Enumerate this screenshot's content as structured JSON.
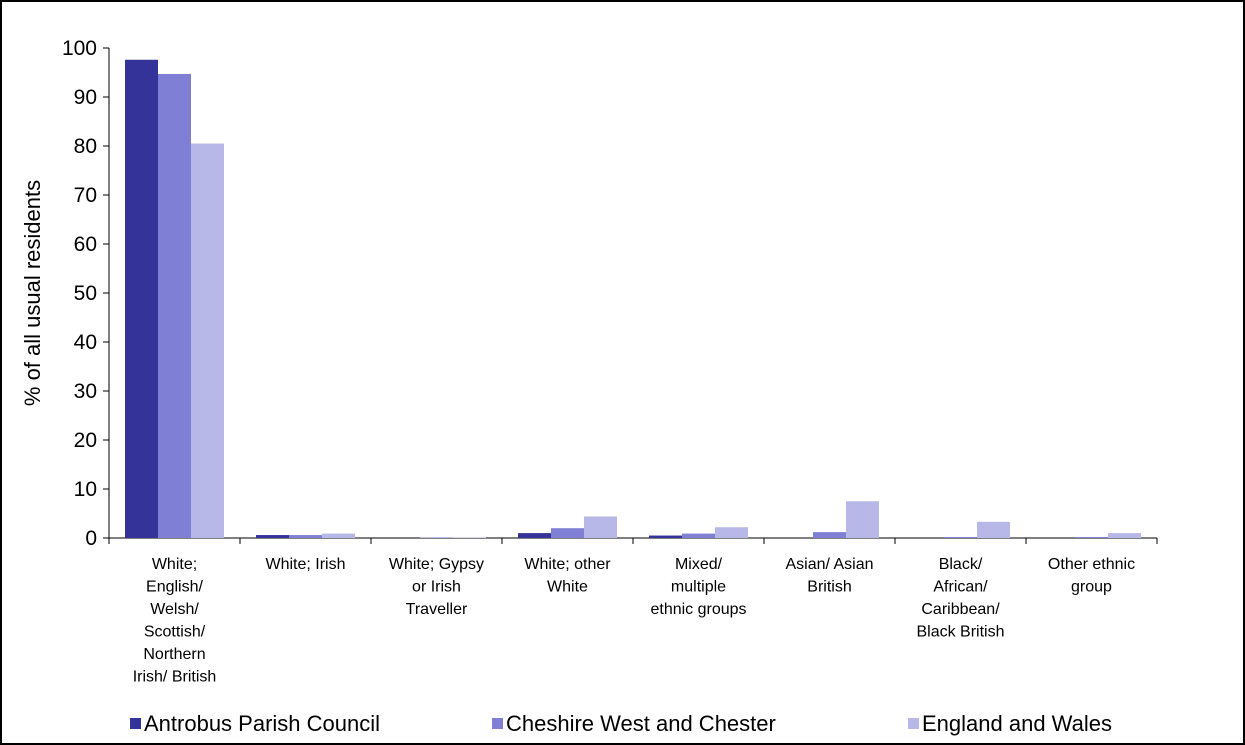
{
  "chart_data": {
    "type": "bar",
    "ylabel": "% of all usual residents",
    "ylim": [
      0,
      100
    ],
    "yticks": [
      0,
      10,
      20,
      30,
      40,
      50,
      60,
      70,
      80,
      90,
      100
    ],
    "grid": false,
    "legend_position": "bottom",
    "categories": [
      "White; English/ Welsh/ Scottish/ Northern Irish/ British",
      "White; Irish",
      "White; Gypsy or Irish Traveller",
      "White; other White",
      "Mixed/ multiple ethnic groups",
      "Asian/ Asian British",
      "Black/ African/ Caribbean/ Black British",
      "Other ethnic group"
    ],
    "category_lines": [
      [
        "White;",
        "English/",
        "Welsh/",
        "Scottish/",
        "Northern",
        "Irish/ British"
      ],
      [
        "White; Irish"
      ],
      [
        "White; Gypsy",
        "or Irish",
        "Traveller"
      ],
      [
        "White; other",
        "White"
      ],
      [
        "Mixed/",
        "multiple",
        "ethnic groups"
      ],
      [
        "Asian/ Asian",
        "British"
      ],
      [
        "Black/",
        "African/",
        "Caribbean/",
        "Black British"
      ],
      [
        "Other ethnic",
        "group"
      ]
    ],
    "series": [
      {
        "name": "Antrobus Parish Council",
        "color": "#333399",
        "values": [
          97.6,
          0.6,
          0.0,
          1.0,
          0.5,
          0.0,
          0.0,
          0.0
        ]
      },
      {
        "name": "Cheshire West and Chester",
        "color": "#7f7fd5",
        "values": [
          94.7,
          0.6,
          0.1,
          2.0,
          0.9,
          1.2,
          0.2,
          0.2
        ]
      },
      {
        "name": "England and Wales",
        "color": "#b8b8e8",
        "values": [
          80.5,
          0.9,
          0.1,
          4.4,
          2.2,
          7.5,
          3.3,
          1.0
        ]
      }
    ]
  }
}
